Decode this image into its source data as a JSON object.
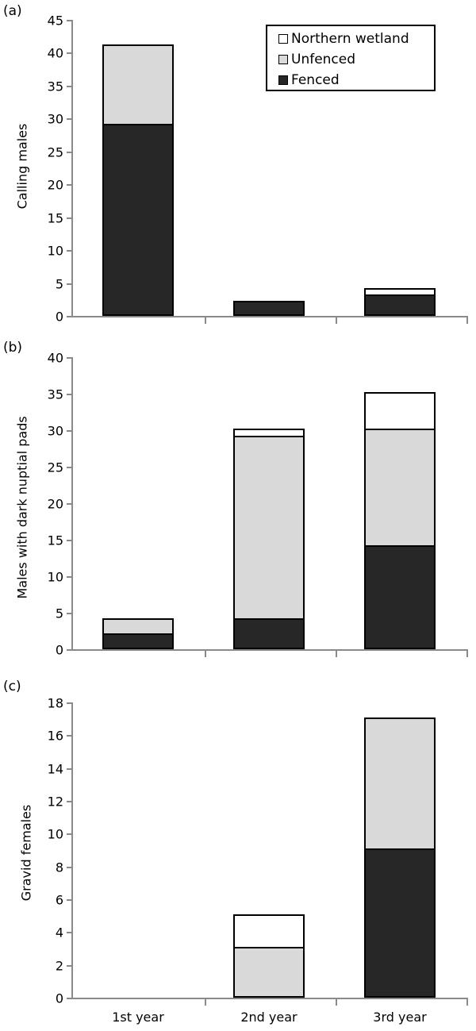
{
  "legend": {
    "items": [
      {
        "label": "Northern wetland",
        "color": "#ffffff"
      },
      {
        "label": "Unfenced",
        "color": "#d9d9d9"
      },
      {
        "label": "Fenced",
        "color": "#272727"
      }
    ]
  },
  "categories": [
    "1st year",
    "2nd year",
    "3rd year"
  ],
  "panels": [
    {
      "label": "(a)",
      "ylabel": "Calling males",
      "yticks": [
        "0",
        "5",
        "10",
        "15",
        "20",
        "25",
        "30",
        "35",
        "40",
        "45"
      ]
    },
    {
      "label": "(b)",
      "ylabel": "Males with dark nuptial pads",
      "yticks": [
        "0",
        "5",
        "10",
        "15",
        "20",
        "25",
        "30",
        "35",
        "40"
      ]
    },
    {
      "label": "(c)",
      "ylabel": "Gravid females",
      "yticks": [
        "0",
        "2",
        "4",
        "6",
        "8",
        "10",
        "12",
        "14",
        "16",
        "18"
      ]
    }
  ],
  "chart_data": [
    {
      "type": "bar",
      "stacked": true,
      "title": "(a)",
      "xlabel": "",
      "ylabel": "Calling males",
      "ylim": [
        0,
        45
      ],
      "categories": [
        "1st year",
        "2nd year",
        "3rd year"
      ],
      "series": [
        {
          "name": "Fenced",
          "color": "#272727",
          "values": [
            29,
            2,
            3
          ]
        },
        {
          "name": "Unfenced",
          "color": "#d9d9d9",
          "values": [
            12,
            0,
            0
          ]
        },
        {
          "name": "Northern wetland",
          "color": "#ffffff",
          "values": [
            0,
            0,
            1
          ]
        }
      ],
      "legend_position": "upper right",
      "grid": false
    },
    {
      "type": "bar",
      "stacked": true,
      "title": "(b)",
      "xlabel": "",
      "ylabel": "Males with dark nuptial pads",
      "ylim": [
        0,
        40
      ],
      "categories": [
        "1st year",
        "2nd year",
        "3rd year"
      ],
      "series": [
        {
          "name": "Fenced",
          "color": "#272727",
          "values": [
            2,
            4,
            14
          ]
        },
        {
          "name": "Unfenced",
          "color": "#d9d9d9",
          "values": [
            2,
            25,
            16
          ]
        },
        {
          "name": "Northern wetland",
          "color": "#ffffff",
          "values": [
            0,
            1,
            5
          ]
        }
      ],
      "grid": false
    },
    {
      "type": "bar",
      "stacked": true,
      "title": "(c)",
      "xlabel": "",
      "ylabel": "Gravid females",
      "ylim": [
        0,
        18
      ],
      "categories": [
        "1st year",
        "2nd year",
        "3rd year"
      ],
      "series": [
        {
          "name": "Fenced",
          "color": "#272727",
          "values": [
            0,
            0,
            9
          ]
        },
        {
          "name": "Unfenced",
          "color": "#d9d9d9",
          "values": [
            0,
            3,
            8
          ]
        },
        {
          "name": "Northern wetland",
          "color": "#ffffff",
          "values": [
            0,
            2,
            0
          ]
        }
      ],
      "grid": false
    }
  ]
}
